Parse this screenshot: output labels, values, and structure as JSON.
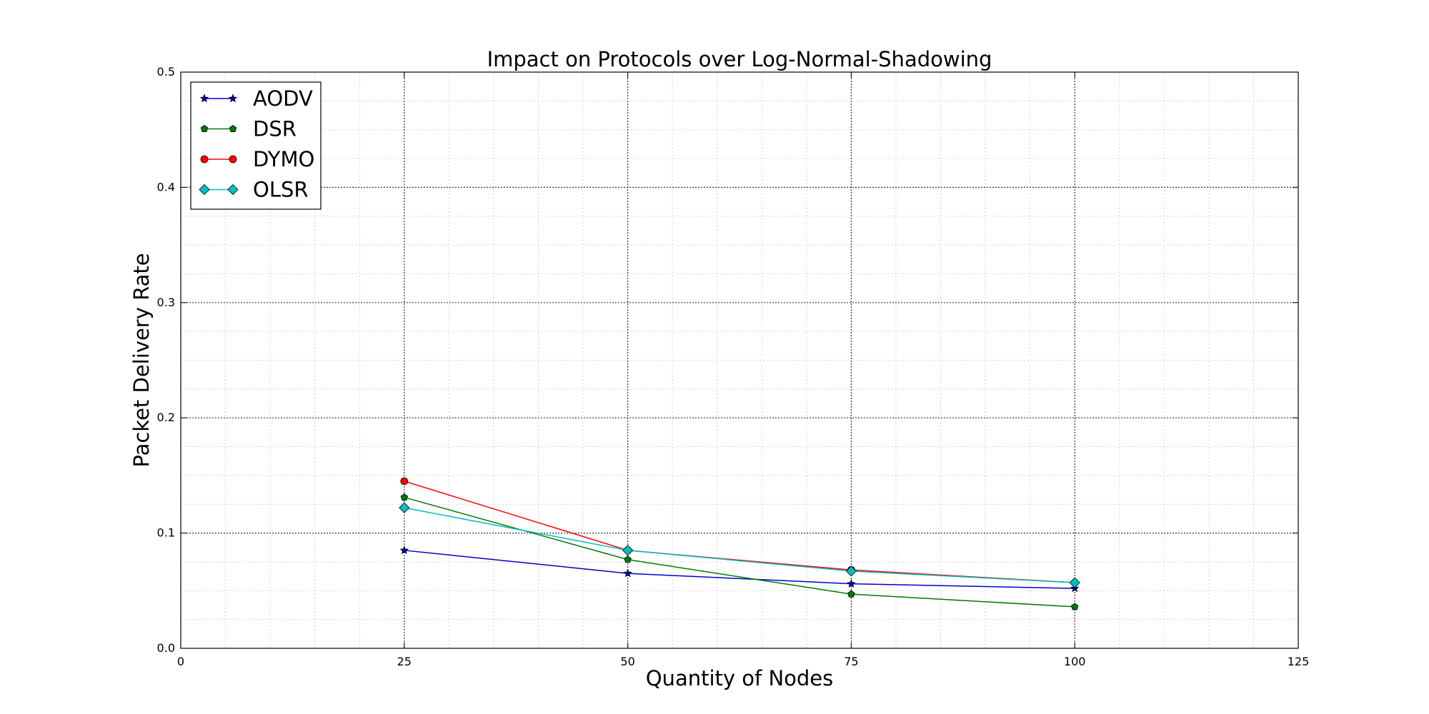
{
  "chart_data": {
    "type": "line",
    "title": "Impact on Protocols over Log-Normal-Shadowing",
    "xlabel": "Quantity of Nodes",
    "ylabel": "Packet Delivery Rate",
    "xlim": [
      0,
      125
    ],
    "ylim": [
      0,
      0.5
    ],
    "x_ticks": [
      0,
      25,
      50,
      75,
      100,
      125
    ],
    "x_tick_labels": [
      "0",
      "25",
      "50",
      "75",
      "100",
      "125"
    ],
    "y_ticks": [
      0,
      0.1,
      0.2,
      0.3,
      0.4,
      0.5
    ],
    "y_tick_labels": [
      "0.0",
      "0.1",
      "0.2",
      "0.3",
      "0.4",
      "0.5"
    ],
    "grid": true,
    "minor_grid": true,
    "legend_position": "top-left",
    "x": [
      25,
      50,
      75,
      100
    ],
    "series": [
      {
        "name": "AODV",
        "color": "#0000cc",
        "marker": "star",
        "values": [
          0.085,
          0.065,
          0.056,
          0.052
        ]
      },
      {
        "name": "DSR",
        "color": "#007a00",
        "marker": "pentagon",
        "values": [
          0.131,
          0.077,
          0.047,
          0.036
        ]
      },
      {
        "name": "DYMO",
        "color": "#ff0000",
        "marker": "circle",
        "values": [
          0.145,
          0.085,
          0.068,
          0.057
        ]
      },
      {
        "name": "OLSR",
        "color": "#00bfbf",
        "marker": "diamond",
        "values": [
          0.122,
          0.085,
          0.067,
          0.057
        ]
      }
    ]
  }
}
